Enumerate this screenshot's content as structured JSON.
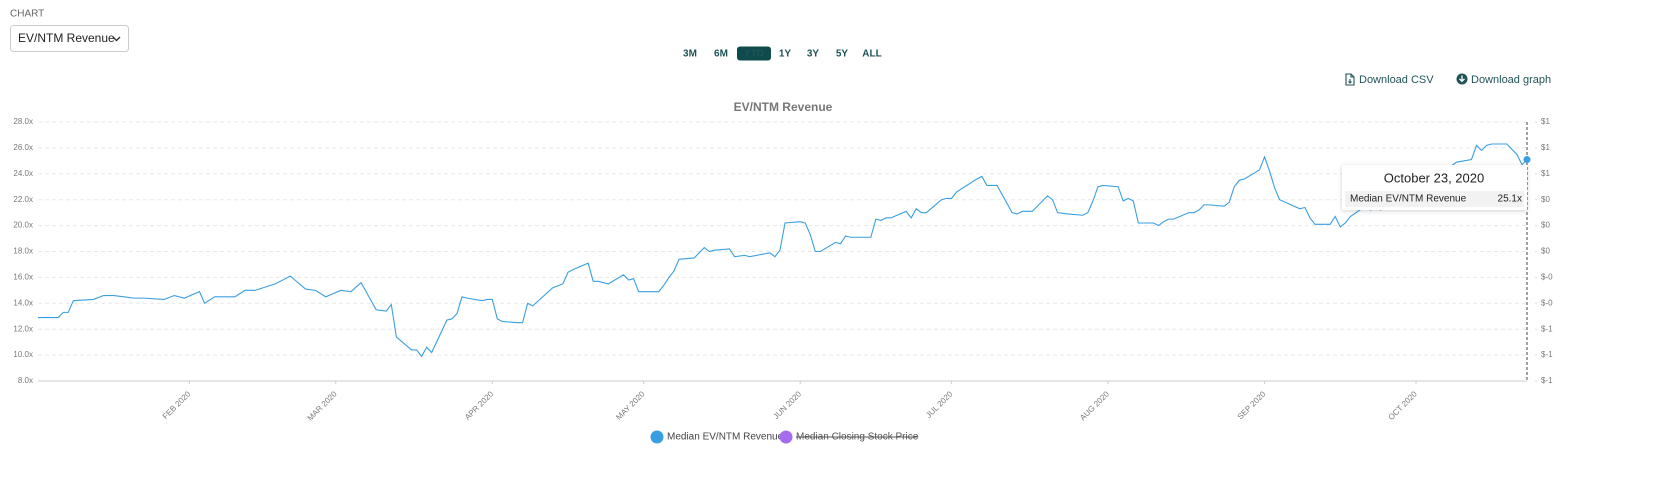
{
  "ui": {
    "chart_label": "CHART",
    "dropdown": "EV/NTM Revenue",
    "ranges": [
      "3M",
      "6M",
      "YTD",
      "1Y",
      "3Y",
      "5Y",
      "ALL"
    ],
    "active_range": 2,
    "download_csv": "Download CSV",
    "download_graph": "Download graph"
  },
  "chart_data": {
    "type": "line",
    "title": "EV/NTM Revenue",
    "x": [
      "2020-01-02",
      "2020-01-06",
      "2020-01-07",
      "2020-01-08",
      "2020-01-09",
      "2020-01-13",
      "2020-01-15",
      "2020-01-17",
      "2020-01-21",
      "2020-01-23",
      "2020-01-27",
      "2020-01-29",
      "2020-01-31",
      "2020-02-03",
      "2020-02-04",
      "2020-02-06",
      "2020-02-10",
      "2020-02-12",
      "2020-02-14",
      "2020-02-18",
      "2020-02-20",
      "2020-02-21",
      "2020-02-24",
      "2020-02-26",
      "2020-02-28",
      "2020-03-02",
      "2020-03-04",
      "2020-03-06",
      "2020-03-09",
      "2020-03-11",
      "2020-03-12",
      "2020-03-13",
      "2020-03-16",
      "2020-03-17",
      "2020-03-18",
      "2020-03-19",
      "2020-03-20",
      "2020-03-23",
      "2020-03-24",
      "2020-03-25",
      "2020-03-26",
      "2020-03-27",
      "2020-03-30",
      "2020-03-31",
      "2020-04-01",
      "2020-04-02",
      "2020-04-03",
      "2020-04-06",
      "2020-04-07",
      "2020-04-08",
      "2020-04-09",
      "2020-04-13",
      "2020-04-15",
      "2020-04-16",
      "2020-04-17",
      "2020-04-20",
      "2020-04-21",
      "2020-04-22",
      "2020-04-24",
      "2020-04-27",
      "2020-04-28",
      "2020-04-29",
      "2020-04-30",
      "2020-05-01",
      "2020-05-04",
      "2020-05-05",
      "2020-05-06",
      "2020-05-07",
      "2020-05-08",
      "2020-05-11",
      "2020-05-13",
      "2020-05-14",
      "2020-05-15",
      "2020-05-18",
      "2020-05-19",
      "2020-05-21",
      "2020-05-22",
      "2020-05-26",
      "2020-05-27",
      "2020-05-28",
      "2020-05-29",
      "2020-06-01",
      "2020-06-02",
      "2020-06-03",
      "2020-06-04",
      "2020-06-05",
      "2020-06-08",
      "2020-06-09",
      "2020-06-10",
      "2020-06-11",
      "2020-06-12",
      "2020-06-15",
      "2020-06-16",
      "2020-06-17",
      "2020-06-18",
      "2020-06-19",
      "2020-06-22",
      "2020-06-23",
      "2020-06-24",
      "2020-06-25",
      "2020-06-26",
      "2020-06-29",
      "2020-06-30",
      "2020-07-01",
      "2020-07-02",
      "2020-07-06",
      "2020-07-07",
      "2020-07-08",
      "2020-07-10",
      "2020-07-13",
      "2020-07-14",
      "2020-07-15",
      "2020-07-17",
      "2020-07-20",
      "2020-07-21",
      "2020-07-22",
      "2020-07-24",
      "2020-07-27",
      "2020-07-28",
      "2020-07-29",
      "2020-07-30",
      "2020-07-31",
      "2020-08-03",
      "2020-08-04",
      "2020-08-05",
      "2020-08-06",
      "2020-08-07",
      "2020-08-10",
      "2020-08-11",
      "2020-08-12",
      "2020-08-13",
      "2020-08-14",
      "2020-08-17",
      "2020-08-18",
      "2020-08-19",
      "2020-08-20",
      "2020-08-21",
      "2020-08-24",
      "2020-08-25",
      "2020-08-26",
      "2020-08-27",
      "2020-08-28",
      "2020-08-31",
      "2020-09-01",
      "2020-09-02",
      "2020-09-03",
      "2020-09-04",
      "2020-09-08",
      "2020-09-09",
      "2020-09-10",
      "2020-09-11",
      "2020-09-14",
      "2020-09-15",
      "2020-09-16",
      "2020-09-17",
      "2020-09-18",
      "2020-09-21",
      "2020-09-22",
      "2020-09-23",
      "2020-09-24",
      "2020-09-25",
      "2020-09-28",
      "2020-09-29",
      "2020-09-30",
      "2020-10-01",
      "2020-10-02",
      "2020-10-05",
      "2020-10-06",
      "2020-10-07",
      "2020-10-08",
      "2020-10-09",
      "2020-10-12",
      "2020-10-13",
      "2020-10-14",
      "2020-10-15",
      "2020-10-16",
      "2020-10-19",
      "2020-10-20",
      "2020-10-21",
      "2020-10-22",
      "2020-10-23"
    ],
    "series": [
      {
        "name": "Median EV/NTM Revenue",
        "color": "#3a9fe0",
        "values": [
          12.9,
          12.9,
          13.3,
          13.3,
          14.2,
          14.3,
          14.6,
          14.6,
          14.4,
          14.4,
          14.3,
          14.6,
          14.4,
          14.9,
          14.0,
          14.5,
          14.5,
          15.0,
          15.0,
          15.5,
          15.9,
          16.1,
          15.1,
          15.0,
          14.5,
          15.0,
          14.9,
          15.6,
          13.5,
          13.4,
          13.9,
          11.4,
          10.4,
          10.4,
          9.9,
          10.6,
          10.2,
          12.7,
          12.8,
          13.2,
          14.5,
          14.4,
          14.2,
          14.3,
          14.3,
          12.8,
          12.6,
          12.5,
          12.5,
          14.0,
          13.8,
          15.2,
          15.5,
          16.4,
          16.6,
          17.1,
          15.7,
          15.7,
          15.5,
          16.2,
          15.8,
          15.9,
          14.9,
          14.9,
          14.9,
          15.4,
          16.0,
          16.5,
          17.4,
          17.5,
          18.3,
          18.0,
          18.1,
          18.2,
          17.6,
          17.7,
          17.6,
          17.9,
          17.6,
          18.1,
          20.2,
          20.3,
          20.2,
          19.3,
          18.0,
          18.0,
          18.7,
          18.6,
          19.2,
          19.1,
          19.1,
          19.1,
          20.5,
          20.4,
          20.6,
          20.6,
          21.1,
          20.6,
          21.3,
          21.0,
          21.0,
          22.0,
          22.1,
          22.1,
          22.6,
          23.6,
          23.8,
          23.1,
          23.1,
          21.0,
          20.9,
          21.1,
          21.1,
          22.3,
          22.0,
          21.0,
          20.9,
          20.8,
          21.0,
          21.9,
          23.0,
          23.1,
          23.0,
          21.9,
          22.1,
          21.9,
          20.2,
          20.2,
          20.0,
          20.3,
          20.5,
          20.5,
          21.0,
          21.0,
          21.2,
          21.6,
          21.6,
          21.5,
          21.8,
          23.0,
          23.5,
          23.6,
          24.3,
          25.3,
          24.2,
          22.9,
          22.0,
          21.3,
          21.4,
          20.6,
          20.1,
          20.1,
          20.7,
          19.9,
          20.2,
          20.7,
          21.5,
          21.2,
          21.4,
          21.2,
          21.8,
          22.5,
          22.8,
          23.0,
          23.2,
          22.9,
          23.8,
          23.5,
          24.2,
          24.6,
          24.9,
          25.1,
          26.2,
          25.8,
          26.2,
          26.3,
          26.3,
          25.9,
          25.5,
          24.7,
          25.1
        ]
      },
      {
        "name": "Median Closing Stock Price",
        "color": "#a66cf0",
        "axis": "y2",
        "hidden": true
      }
    ],
    "xlim": [
      "2020-01-02",
      "2020-10-23"
    ],
    "xticks": [
      {
        "value": "2020-02-01",
        "label": "FEB 2020"
      },
      {
        "value": "2020-03-01",
        "label": "MAR 2020"
      },
      {
        "value": "2020-04-01",
        "label": "APR 2020"
      },
      {
        "value": "2020-05-01",
        "label": "MAY 2020"
      },
      {
        "value": "2020-06-01",
        "label": "JUN 2020"
      },
      {
        "value": "2020-07-01",
        "label": "JUL 2020"
      },
      {
        "value": "2020-08-01",
        "label": "AUG 2020"
      },
      {
        "value": "2020-09-01",
        "label": "SEP 2020"
      },
      {
        "value": "2020-10-01",
        "label": "OCT 2020"
      }
    ],
    "ylim": [
      8,
      28
    ],
    "yticks": [
      {
        "value": 8,
        "label": "8.0x"
      },
      {
        "value": 10,
        "label": "10.0x"
      },
      {
        "value": 12,
        "label": "12.0x"
      },
      {
        "value": 14,
        "label": "14.0x"
      },
      {
        "value": 16,
        "label": "16.0x"
      },
      {
        "value": 18,
        "label": "18.0x"
      },
      {
        "value": 20,
        "label": "20.0x"
      },
      {
        "value": 22,
        "label": "22.0x"
      },
      {
        "value": 24,
        "label": "24.0x"
      },
      {
        "value": 26,
        "label": "26.0x"
      },
      {
        "value": 28,
        "label": "28.0x"
      }
    ],
    "y2lim": [
      -1,
      1
    ],
    "y2ticks": [
      {
        "value": -1,
        "label": "$-1"
      },
      {
        "value": -0.8,
        "label": "$-1"
      },
      {
        "value": -0.6,
        "label": "$-1"
      },
      {
        "value": -0.4,
        "label": "$-0"
      },
      {
        "value": -0.2,
        "label": "$-0"
      },
      {
        "value": 0,
        "label": "$0"
      },
      {
        "value": 0.2,
        "label": "$0"
      },
      {
        "value": 0.4,
        "label": "$0"
      },
      {
        "value": 0.6,
        "label": "$1"
      },
      {
        "value": 0.8,
        "label": "$1"
      },
      {
        "value": 1,
        "label": "$1"
      }
    ],
    "grid": true,
    "legend": "bottom",
    "tooltip": {
      "title": "October 23, 2020",
      "value_label": "25.1x"
    }
  }
}
